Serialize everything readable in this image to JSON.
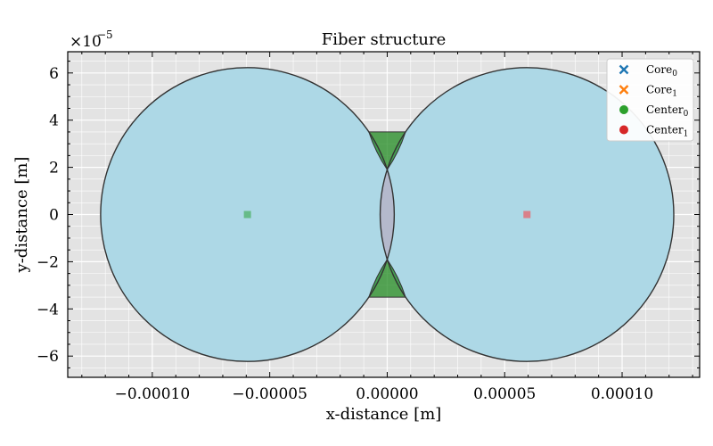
{
  "chart_data": {
    "type": "scatter",
    "title": "Fiber structure",
    "xlabel": "x-distance [m]",
    "ylabel": "y-distance [m]",
    "xlim": [
      -0.000136,
      0.000133
    ],
    "ylim": [
      -6.9e-05,
      6.9e-05
    ],
    "y_offset_text": "×10",
    "y_offset_exponent": "−5",
    "x_ticks": [
      {
        "value": -0.0001,
        "label": "−0.00010"
      },
      {
        "value": -5e-05,
        "label": "−0.00005"
      },
      {
        "value": 0.0,
        "label": "0.00000"
      },
      {
        "value": 5e-05,
        "label": "0.00005"
      },
      {
        "value": 0.0001,
        "label": "0.00010"
      }
    ],
    "y_ticks": [
      {
        "value": -6e-05,
        "label": "−6"
      },
      {
        "value": -4e-05,
        "label": "−4"
      },
      {
        "value": -2e-05,
        "label": "−2"
      },
      {
        "value": 0,
        "label": "0"
      },
      {
        "value": 2e-05,
        "label": "2"
      },
      {
        "value": 4e-05,
        "label": "4"
      },
      {
        "value": 6e-05,
        "label": "6"
      }
    ],
    "grid": true,
    "legend_position": "top-right",
    "legend": [
      {
        "base": "Core",
        "sub": "0",
        "marker": "x",
        "color": "#1f77b4"
      },
      {
        "base": "Core",
        "sub": "1",
        "marker": "x",
        "color": "#ff7f0e"
      },
      {
        "base": "Center",
        "sub": "0",
        "marker": "o",
        "color": "#2ca02c"
      },
      {
        "base": "Center",
        "sub": "1",
        "marker": "o",
        "color": "#d62728"
      }
    ],
    "fibers": [
      {
        "cx": -5.95e-05,
        "cy": 0,
        "r": 6.25e-05
      },
      {
        "cx": 5.95e-05,
        "cy": 0,
        "r": 6.25e-05
      }
    ],
    "cladding_fill_color": "#add8e6",
    "gap_fill_color": "#228b22",
    "gap_region_y_range": [
      3.5e-05,
      -3.5e-05
    ],
    "centers": [
      {
        "x": -5.95e-05,
        "y": 0,
        "color": "#66bb88"
      },
      {
        "x": 5.95e-05,
        "y": 0,
        "color": "#d9808a"
      }
    ],
    "colors": {
      "plot_bg": "#e3e3e3",
      "grid": "#ffffff",
      "circle_edge": "#333333",
      "overlap_fill": "#b4b9cc"
    }
  }
}
